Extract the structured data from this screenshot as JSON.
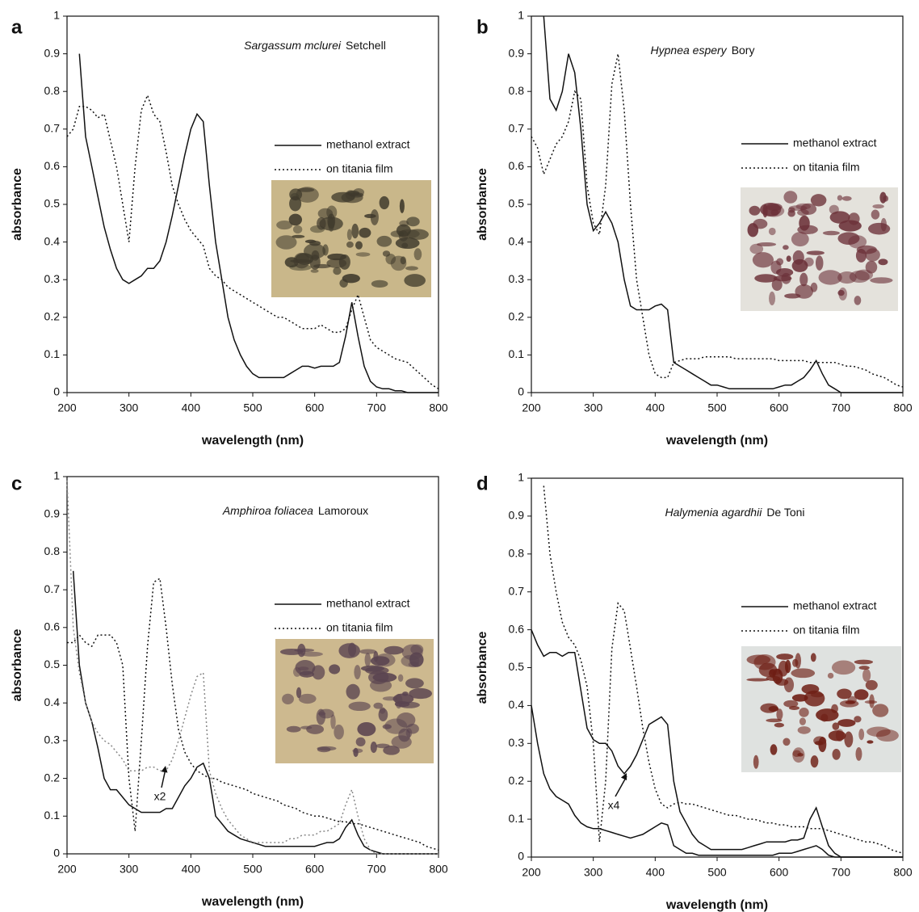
{
  "chart_data": [
    {
      "type": "line",
      "label": "a",
      "title_italic": "Sargassum mclurei",
      "title_author": "Setchell",
      "xlabel": "wavelength (nm)",
      "ylabel": "absorbance",
      "xlim": [
        200,
        800
      ],
      "xticks": [
        200,
        300,
        400,
        500,
        600,
        700,
        800
      ],
      "ylim": [
        0,
        1
      ],
      "yticks": [
        0,
        0.1,
        0.2,
        0.3,
        0.4,
        0.5,
        0.6,
        0.7,
        0.8,
        0.9,
        1
      ],
      "x": [
        200,
        210,
        220,
        230,
        240,
        250,
        260,
        270,
        280,
        290,
        300,
        310,
        320,
        330,
        340,
        350,
        360,
        370,
        380,
        390,
        400,
        410,
        420,
        430,
        440,
        450,
        460,
        470,
        480,
        490,
        500,
        510,
        520,
        530,
        540,
        550,
        560,
        570,
        580,
        590,
        600,
        610,
        620,
        630,
        640,
        650,
        660,
        670,
        680,
        690,
        700,
        710,
        720,
        730,
        740,
        750,
        760,
        770,
        780,
        790,
        800
      ],
      "series": [
        {
          "name": "methanol extract",
          "color": "#111111",
          "style": "solid",
          "values": [
            null,
            null,
            0.9,
            0.68,
            0.6,
            0.52,
            0.44,
            0.38,
            0.33,
            0.3,
            0.29,
            0.3,
            0.31,
            0.33,
            0.33,
            0.35,
            0.4,
            0.47,
            0.55,
            0.63,
            0.7,
            0.74,
            0.72,
            0.55,
            0.4,
            0.3,
            0.2,
            0.14,
            0.1,
            0.07,
            0.05,
            0.04,
            0.04,
            0.04,
            0.04,
            0.04,
            0.05,
            0.06,
            0.07,
            0.07,
            0.065,
            0.07,
            0.07,
            0.07,
            0.08,
            0.15,
            0.24,
            0.15,
            0.07,
            0.03,
            0.015,
            0.01,
            0.01,
            0.005,
            0.005,
            0,
            0,
            0,
            0,
            0,
            0
          ]
        },
        {
          "name": "on titania film",
          "color": "#111111",
          "style": "dotted",
          "values": [
            0.68,
            0.7,
            0.76,
            0.76,
            0.75,
            0.73,
            0.74,
            0.67,
            0.6,
            0.5,
            0.4,
            0.6,
            0.75,
            0.79,
            0.74,
            0.72,
            0.64,
            0.55,
            0.5,
            0.46,
            0.43,
            0.41,
            0.39,
            0.33,
            0.31,
            0.3,
            0.28,
            0.27,
            0.26,
            0.25,
            0.24,
            0.23,
            0.22,
            0.21,
            0.2,
            0.2,
            0.19,
            0.18,
            0.17,
            0.17,
            0.17,
            0.18,
            0.17,
            0.16,
            0.16,
            0.17,
            0.22,
            0.26,
            0.2,
            0.14,
            0.12,
            0.11,
            0.1,
            0.09,
            0.085,
            0.08,
            0.065,
            0.05,
            0.035,
            0.02,
            0.01
          ]
        }
      ]
    },
    {
      "type": "line",
      "label": "b",
      "title_italic": "Hypnea espery",
      "title_author": "Bory",
      "xlabel": "wavelength (nm)",
      "ylabel": "absorbance",
      "xlim": [
        200,
        800
      ],
      "xticks": [
        200,
        300,
        400,
        500,
        600,
        700,
        800
      ],
      "ylim": [
        0,
        1
      ],
      "yticks": [
        0,
        0.1,
        0.2,
        0.3,
        0.4,
        0.5,
        0.6,
        0.7,
        0.8,
        0.9,
        1
      ],
      "x": [
        200,
        210,
        220,
        230,
        240,
        250,
        260,
        270,
        280,
        290,
        300,
        310,
        320,
        330,
        340,
        350,
        360,
        370,
        380,
        390,
        400,
        410,
        420,
        430,
        440,
        450,
        460,
        470,
        480,
        490,
        500,
        510,
        520,
        530,
        540,
        550,
        560,
        570,
        580,
        590,
        600,
        610,
        620,
        630,
        640,
        650,
        660,
        670,
        680,
        690,
        700,
        710,
        720,
        730,
        740,
        750,
        760,
        770,
        780,
        790,
        800
      ],
      "series": [
        {
          "name": "methanol extract",
          "color": "#111111",
          "style": "solid",
          "values": [
            null,
            null,
            1,
            0.78,
            0.75,
            0.8,
            0.9,
            0.85,
            0.7,
            0.5,
            0.43,
            0.45,
            0.48,
            0.45,
            0.4,
            0.3,
            0.23,
            0.22,
            0.22,
            0.22,
            0.23,
            0.235,
            0.22,
            0.08,
            0.07,
            0.06,
            0.05,
            0.04,
            0.03,
            0.02,
            0.02,
            0.015,
            0.01,
            0.01,
            0.01,
            0.01,
            0.01,
            0.01,
            0.01,
            0.01,
            0.015,
            0.02,
            0.02,
            0.03,
            0.04,
            0.06,
            0.085,
            0.05,
            0.02,
            0.01,
            0,
            0,
            0,
            0,
            0,
            0,
            0,
            0,
            0,
            0,
            0
          ]
        },
        {
          "name": "on titania film",
          "color": "#111111",
          "style": "dotted",
          "values": [
            0.68,
            0.65,
            0.58,
            0.62,
            0.66,
            0.68,
            0.72,
            0.8,
            0.78,
            0.55,
            0.45,
            0.42,
            0.55,
            0.82,
            0.9,
            0.75,
            0.5,
            0.3,
            0.2,
            0.1,
            0.05,
            0.04,
            0.04,
            0.08,
            0.085,
            0.09,
            0.09,
            0.09,
            0.095,
            0.095,
            0.095,
            0.095,
            0.095,
            0.09,
            0.09,
            0.09,
            0.09,
            0.09,
            0.09,
            0.09,
            0.085,
            0.085,
            0.085,
            0.085,
            0.085,
            0.08,
            0.08,
            0.08,
            0.08,
            0.08,
            0.075,
            0.07,
            0.07,
            0.065,
            0.06,
            0.05,
            0.045,
            0.04,
            0.03,
            0.02,
            0.015
          ]
        }
      ]
    },
    {
      "type": "line",
      "label": "c",
      "title_italic": "Amphiroa foliacea",
      "title_author": "Lamoroux",
      "xlabel": "wavelength (nm)",
      "ylabel": "absorbance",
      "annotation": "x2",
      "xlim": [
        200,
        800
      ],
      "xticks": [
        200,
        300,
        400,
        500,
        600,
        700,
        800
      ],
      "ylim": [
        0,
        1
      ],
      "yticks": [
        0,
        0.1,
        0.2,
        0.3,
        0.4,
        0.5,
        0.6,
        0.7,
        0.8,
        0.9,
        1
      ],
      "x": [
        200,
        210,
        220,
        230,
        240,
        250,
        260,
        270,
        280,
        290,
        300,
        310,
        320,
        330,
        340,
        350,
        360,
        370,
        380,
        390,
        400,
        410,
        420,
        430,
        440,
        450,
        460,
        470,
        480,
        490,
        500,
        510,
        520,
        530,
        540,
        550,
        560,
        570,
        580,
        590,
        600,
        610,
        620,
        630,
        640,
        650,
        660,
        670,
        680,
        690,
        700,
        710,
        720,
        730,
        740,
        750,
        760,
        770,
        780,
        790,
        800
      ],
      "series": [
        {
          "name": "methanol extract",
          "color": "#111111",
          "style": "solid",
          "values": [
            null,
            0.75,
            0.5,
            0.4,
            0.35,
            0.28,
            0.2,
            0.17,
            0.17,
            0.15,
            0.13,
            0.12,
            0.11,
            0.11,
            0.11,
            0.11,
            0.12,
            0.12,
            0.15,
            0.18,
            0.2,
            0.23,
            0.24,
            0.2,
            0.1,
            0.08,
            0.06,
            0.05,
            0.04,
            0.035,
            0.03,
            0.025,
            0.02,
            0.02,
            0.02,
            0.02,
            0.02,
            0.02,
            0.02,
            0.02,
            0.02,
            0.025,
            0.03,
            0.03,
            0.04,
            0.07,
            0.09,
            0.05,
            0.02,
            0.01,
            0.005,
            0,
            0,
            0,
            0,
            0,
            0,
            0,
            0,
            0,
            0
          ]
        },
        {
          "name": "on titania film",
          "color": "#111111",
          "style": "dotted",
          "values": [
            0.56,
            0.56,
            0.58,
            0.56,
            0.55,
            0.58,
            0.58,
            0.58,
            0.56,
            0.5,
            0.2,
            0.06,
            0.3,
            0.55,
            0.72,
            0.73,
            0.6,
            0.45,
            0.33,
            0.27,
            0.24,
            0.22,
            0.21,
            0.2,
            0.2,
            0.19,
            0.185,
            0.18,
            0.175,
            0.17,
            0.16,
            0.155,
            0.15,
            0.145,
            0.14,
            0.13,
            0.125,
            0.12,
            0.11,
            0.105,
            0.1,
            0.1,
            0.095,
            0.09,
            0.085,
            0.085,
            0.08,
            0.08,
            0.075,
            0.07,
            0.065,
            0.06,
            0.055,
            0.05,
            0.045,
            0.04,
            0.035,
            0.03,
            0.02,
            0.015,
            0.01
          ]
        },
        {
          "color": "#888888",
          "style": "dotted",
          "values": [
            0.99,
            0.6,
            0.48,
            0.4,
            0.35,
            0.32,
            0.3,
            0.29,
            0.27,
            0.25,
            0.22,
            0.22,
            0.22,
            0.23,
            0.23,
            0.22,
            0.22,
            0.25,
            0.3,
            0.36,
            0.42,
            0.47,
            0.48,
            0.22,
            0.16,
            0.12,
            0.09,
            0.07,
            0.05,
            0.04,
            0.03,
            0.03,
            0.03,
            0.03,
            0.03,
            0.03,
            0.04,
            0.04,
            0.05,
            0.05,
            0.05,
            0.06,
            0.06,
            0.07,
            0.08,
            0.13,
            0.17,
            0.1,
            0.04,
            0.01,
            0,
            0,
            0,
            0,
            0,
            0,
            0,
            0,
            0,
            0,
            0
          ]
        }
      ]
    },
    {
      "type": "line",
      "label": "d",
      "title_italic": "Halymenia agardhii",
      "title_author": "De Toni",
      "xlabel": "wavelength (nm)",
      "ylabel": "absorbance",
      "annotation": "x4",
      "xlim": [
        200,
        800
      ],
      "xticks": [
        200,
        300,
        400,
        500,
        600,
        700,
        800
      ],
      "ylim": [
        0,
        1
      ],
      "yticks": [
        0,
        0.1,
        0.2,
        0.3,
        0.4,
        0.5,
        0.6,
        0.7,
        0.8,
        0.9,
        1
      ],
      "x": [
        200,
        210,
        220,
        230,
        240,
        250,
        260,
        270,
        280,
        290,
        300,
        310,
        320,
        330,
        340,
        350,
        360,
        370,
        380,
        390,
        400,
        410,
        420,
        430,
        440,
        450,
        460,
        470,
        480,
        490,
        500,
        510,
        520,
        530,
        540,
        550,
        560,
        570,
        580,
        590,
        600,
        610,
        620,
        630,
        640,
        650,
        660,
        670,
        680,
        690,
        700,
        710,
        720,
        730,
        740,
        750,
        760,
        770,
        780,
        790,
        800
      ],
      "series": [
        {
          "name": "methanol extract",
          "color": "#111111",
          "style": "solid",
          "values": [
            0.4,
            0.3,
            0.22,
            0.18,
            0.16,
            0.15,
            0.14,
            0.11,
            0.09,
            0.08,
            0.075,
            0.075,
            0.07,
            0.065,
            0.06,
            0.055,
            0.05,
            0.055,
            0.06,
            0.07,
            0.08,
            0.09,
            0.085,
            0.03,
            0.02,
            0.01,
            0.01,
            0.005,
            0.005,
            0.005,
            0.005,
            0.005,
            0.005,
            0.005,
            0.005,
            0.005,
            0.005,
            0.005,
            0.005,
            0.005,
            0.01,
            0.01,
            0.01,
            0.015,
            0.02,
            0.025,
            0.03,
            0.02,
            0.005,
            0,
            0,
            0,
            0,
            0,
            0,
            0,
            0,
            0,
            0,
            0,
            0
          ]
        },
        {
          "name": "on titania film",
          "color": "#111111",
          "style": "dotted",
          "values": [
            null,
            null,
            0.98,
            0.8,
            0.7,
            0.62,
            0.58,
            0.56,
            0.52,
            0.45,
            0.3,
            0.04,
            0.2,
            0.55,
            0.67,
            0.65,
            0.55,
            0.45,
            0.34,
            0.25,
            0.18,
            0.14,
            0.13,
            0.14,
            0.145,
            0.14,
            0.14,
            0.135,
            0.13,
            0.125,
            0.12,
            0.115,
            0.11,
            0.11,
            0.105,
            0.1,
            0.1,
            0.095,
            0.09,
            0.09,
            0.085,
            0.085,
            0.08,
            0.08,
            0.08,
            0.075,
            0.075,
            0.075,
            0.07,
            0.065,
            0.06,
            0.055,
            0.05,
            0.045,
            0.04,
            0.04,
            0.035,
            0.03,
            0.02,
            0.015,
            0.01
          ]
        },
        {
          "color": "#111111",
          "style": "solid",
          "values": [
            0.6,
            0.56,
            0.53,
            0.54,
            0.54,
            0.53,
            0.54,
            0.54,
            0.44,
            0.34,
            0.31,
            0.3,
            0.3,
            0.28,
            0.24,
            0.22,
            0.24,
            0.27,
            0.31,
            0.35,
            0.36,
            0.37,
            0.35,
            0.2,
            0.12,
            0.09,
            0.06,
            0.04,
            0.03,
            0.02,
            0.02,
            0.02,
            0.02,
            0.02,
            0.02,
            0.025,
            0.03,
            0.035,
            0.04,
            0.04,
            0.04,
            0.04,
            0.045,
            0.045,
            0.05,
            0.1,
            0.13,
            0.08,
            0.03,
            0.01,
            0,
            0,
            0,
            0,
            0,
            0,
            0,
            0,
            0,
            0,
            0
          ]
        }
      ]
    }
  ]
}
